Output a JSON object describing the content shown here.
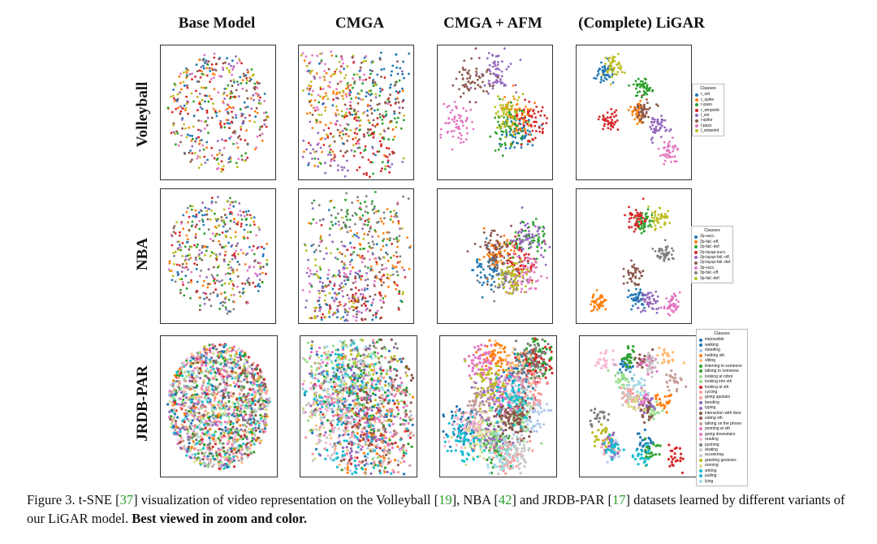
{
  "columns": [
    "Base Model",
    "CMGA",
    "CMGA + AFM",
    "(Complete) LiGAR"
  ],
  "rows": [
    "Volleyball",
    "NBA",
    "JRDB-PAR"
  ],
  "legends": [
    {
      "title": "Classes",
      "items": [
        "r_set",
        "r_spike",
        "r-pass",
        "r_winpoint",
        "l_set",
        "l-spike",
        "l-pass",
        "l_winpoint"
      ],
      "colors": [
        "#1f77b4",
        "#ff7f0e",
        "#2ca02c",
        "#d62728",
        "#9467bd",
        "#8c564b",
        "#e377c2",
        "#bcbd22"
      ]
    },
    {
      "title": "Classes",
      "items": [
        "2p-succ.",
        "2p-fail.-off.",
        "2p-fail.-def.",
        "2p-layup-succ.",
        "2p-layup-fail.-off.",
        "2p-layup-fail.-def.",
        "3p-succ.",
        "3p-fail.-off.",
        "3p-fail.-def."
      ],
      "colors": [
        "#1f77b4",
        "#ff7f0e",
        "#2ca02c",
        "#d62728",
        "#9467bd",
        "#8c564b",
        "#e377c2",
        "#7f7f7f",
        "#bcbd22"
      ]
    },
    {
      "title": "Classes",
      "items": [
        "impossible",
        "walking",
        "standing",
        "holding sth",
        "sitting",
        "listening to someone",
        "talking to someone",
        "looking at robot",
        "looking into sth",
        "looking at sth",
        "cycling",
        "going upstairs",
        "bending",
        "typing",
        "interaction with door",
        "eating sth",
        "talking on the phone",
        "pointing at sth",
        "going downstairs",
        "reading",
        "pushing",
        "skating",
        "scootering",
        "greeting gestures",
        "running",
        "writing",
        "pulling",
        "lying"
      ],
      "colors": [
        "#1f77b4",
        "#1f77b4",
        "#aec7e8",
        "#ff7f0e",
        "#ffbb78",
        "#2ca02c",
        "#2ca02c",
        "#98df8a",
        "#98df8a",
        "#d62728",
        "#ff9896",
        "#ff9896",
        "#9467bd",
        "#9467bd",
        "#8c564b",
        "#8c564b",
        "#c49c94",
        "#e377c2",
        "#e377c2",
        "#f7b6d2",
        "#7f7f7f",
        "#c7c7c7",
        "#c7c7c7",
        "#bcbd22",
        "#dbdb8d",
        "#17becf",
        "#17becf",
        "#9edae5"
      ]
    }
  ],
  "caption": {
    "lead": "Figure 3. t-SNE [",
    "ref1": "37",
    "t1": "] visualization of video representation on the Volleyball [",
    "ref2": "19",
    "t2": "], NBA [",
    "ref3": "42",
    "t3": "] and JRDB-PAR [",
    "ref4": "17",
    "t4": "] datasets learned by different variants of our LiGAR model. ",
    "bold": "Best viewed in zoom and color."
  }
}
